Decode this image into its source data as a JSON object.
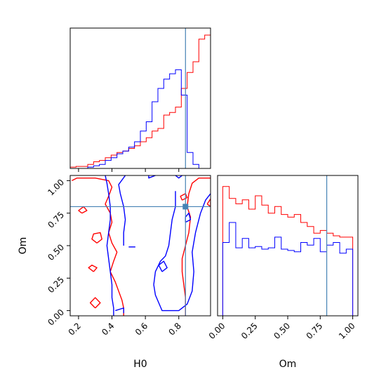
{
  "chart_data": {
    "type": "corner",
    "parameters": [
      "H0",
      "Om"
    ],
    "truth": {
      "H0": 0.84,
      "Om": 0.8
    },
    "colors": {
      "series_a": "#ff0000",
      "series_b": "#0000ff",
      "truth": "#4682b4"
    },
    "panels": [
      {
        "id": "hist_H0",
        "type": "histogram",
        "xlim": [
          0.15,
          0.99
        ],
        "bin_edges": [
          0.15,
          0.185,
          0.22,
          0.255,
          0.29,
          0.325,
          0.36,
          0.395,
          0.43,
          0.465,
          0.5,
          0.535,
          0.57,
          0.605,
          0.64,
          0.675,
          0.71,
          0.745,
          0.78,
          0.815,
          0.85,
          0.885,
          0.92,
          0.955,
          0.99
        ],
        "series": [
          {
            "color_key": "series_a",
            "counts": [
              0.01,
              0.015,
              0.015,
              0.03,
              0.05,
              0.06,
              0.08,
              0.1,
              0.12,
              0.13,
              0.15,
              0.17,
              0.2,
              0.23,
              0.28,
              0.3,
              0.4,
              0.42,
              0.46,
              0.6,
              0.72,
              0.8,
              0.97,
              1.0
            ]
          },
          {
            "color_key": "series_b",
            "counts": [
              0.0,
              0.0,
              0.0,
              0.01,
              0.02,
              0.03,
              0.06,
              0.08,
              0.11,
              0.13,
              0.16,
              0.2,
              0.28,
              0.35,
              0.5,
              0.6,
              0.67,
              0.71,
              0.74,
              0.55,
              0.12,
              0.03,
              0.0,
              0.0
            ]
          }
        ]
      },
      {
        "id": "hist_Om",
        "type": "histogram",
        "xlim": [
          -0.04,
          1.04
        ],
        "xticks": [
          "0.00",
          "0.25",
          "0.50",
          "0.75",
          "1.00"
        ],
        "xtick_values": [
          0.0,
          0.25,
          0.5,
          0.75,
          1.0
        ],
        "xlabel": "Om",
        "bin_edges": [
          0.0,
          0.05,
          0.1,
          0.15,
          0.2,
          0.25,
          0.3,
          0.35,
          0.4,
          0.45,
          0.5,
          0.55,
          0.6,
          0.65,
          0.7,
          0.75,
          0.8,
          0.85,
          0.9,
          0.95,
          1.0
        ],
        "series": [
          {
            "color_key": "series_a",
            "counts": [
              0.97,
              0.88,
              0.84,
              0.87,
              0.8,
              0.9,
              0.83,
              0.77,
              0.82,
              0.76,
              0.74,
              0.76,
              0.7,
              0.67,
              0.62,
              0.64,
              0.62,
              0.6,
              0.59,
              0.59
            ]
          },
          {
            "color_key": "series_b",
            "counts": [
              0.55,
              0.7,
              0.51,
              0.58,
              0.51,
              0.52,
              0.5,
              0.51,
              0.59,
              0.5,
              0.49,
              0.48,
              0.55,
              0.53,
              0.58,
              0.48,
              0.53,
              0.55,
              0.47,
              0.5
            ]
          }
        ]
      },
      {
        "id": "joint_H0_Om",
        "type": "contour",
        "xlim": [
          0.15,
          0.99
        ],
        "ylim": [
          -0.04,
          1.04
        ],
        "xticks": [
          "0.2",
          "0.4",
          "0.6",
          "0.8"
        ],
        "xtick_values": [
          0.2,
          0.4,
          0.6,
          0.8
        ],
        "yticks": [
          "0.00",
          "0.25",
          "0.50",
          "0.75",
          "1.00"
        ],
        "ytick_values": [
          0.0,
          0.25,
          0.5,
          0.75,
          1.0
        ],
        "xlabel": "H0",
        "ylabel": "Om",
        "series": [
          {
            "color_key": "series_a",
            "contours": [
              [
                [
                  0.16,
                  1.0
                ],
                [
                  0.19,
                  1.02
                ],
                [
                  0.3,
                  1.02
                ],
                [
                  0.38,
                  1.0
                ],
                [
                  0.4,
                  0.95
                ],
                [
                  0.38,
                  0.88
                ],
                [
                  0.36,
                  0.82
                ],
                [
                  0.39,
                  0.75
                ],
                [
                  0.4,
                  0.68
                ],
                [
                  0.38,
                  0.6
                ],
                [
                  0.4,
                  0.52
                ],
                [
                  0.43,
                  0.45
                ],
                [
                  0.41,
                  0.38
                ],
                [
                  0.39,
                  0.3
                ],
                [
                  0.42,
                  0.22
                ],
                [
                  0.44,
                  0.15
                ],
                [
                  0.46,
                  0.08
                ],
                [
                  0.47,
                  0.02
                ],
                [
                  0.47,
                  -0.04
                ]
              ],
              [
                [
                  0.3,
                  0.02
                ],
                [
                  0.33,
                  0.06
                ],
                [
                  0.3,
                  0.1
                ],
                [
                  0.27,
                  0.06
                ],
                [
                  0.3,
                  0.02
                ]
              ],
              [
                [
                  0.22,
                  0.75
                ],
                [
                  0.25,
                  0.77
                ],
                [
                  0.23,
                  0.8
                ],
                [
                  0.2,
                  0.77
                ],
                [
                  0.22,
                  0.75
                ]
              ],
              [
                [
                  0.31,
                  0.52
                ],
                [
                  0.34,
                  0.55
                ],
                [
                  0.33,
                  0.6
                ],
                [
                  0.29,
                  0.59
                ],
                [
                  0.28,
                  0.55
                ],
                [
                  0.31,
                  0.52
                ]
              ],
              [
                [
                  0.29,
                  0.3
                ],
                [
                  0.31,
                  0.33
                ],
                [
                  0.28,
                  0.35
                ],
                [
                  0.26,
                  0.33
                ],
                [
                  0.29,
                  0.3
                ]
              ],
              [
                [
                  0.99,
                  1.02
                ],
                [
                  0.92,
                  1.02
                ],
                [
                  0.88,
                  0.98
                ],
                [
                  0.86,
                  0.9
                ],
                [
                  0.85,
                  0.8
                ],
                [
                  0.87,
                  0.72
                ],
                [
                  0.86,
                  0.6
                ],
                [
                  0.84,
                  0.5
                ],
                [
                  0.82,
                  0.4
                ],
                [
                  0.82,
                  0.3
                ],
                [
                  0.83,
                  0.2
                ],
                [
                  0.84,
                  0.1
                ],
                [
                  0.84,
                  0.0
                ],
                [
                  0.84,
                  -0.04
                ]
              ],
              [
                [
                  0.82,
                  0.85
                ],
                [
                  0.85,
                  0.87
                ],
                [
                  0.84,
                  0.9
                ],
                [
                  0.81,
                  0.88
                ],
                [
                  0.82,
                  0.85
                ]
              ],
              [
                [
                  0.97,
                  0.82
                ],
                [
                  0.99,
                  0.8
                ],
                [
                  0.99,
                  0.86
                ],
                [
                  0.97,
                  0.82
                ]
              ]
            ]
          },
          {
            "color_key": "series_b",
            "contours": [
              [
                [
                  0.36,
                  1.04
                ],
                [
                  0.37,
                  0.98
                ],
                [
                  0.38,
                  0.9
                ],
                [
                  0.39,
                  0.8
                ],
                [
                  0.39,
                  0.7
                ],
                [
                  0.38,
                  0.6
                ],
                [
                  0.37,
                  0.5
                ],
                [
                  0.38,
                  0.4
                ],
                [
                  0.39,
                  0.3
                ],
                [
                  0.4,
                  0.2
                ],
                [
                  0.4,
                  0.1
                ],
                [
                  0.41,
                  0.02
                ],
                [
                  0.41,
                  -0.04
                ]
              ],
              [
                [
                  0.48,
                  1.04
                ],
                [
                  0.44,
                  0.97
                ],
                [
                  0.45,
                  0.9
                ],
                [
                  0.47,
                  0.8
                ],
                [
                  0.48,
                  0.7
                ],
                [
                  0.47,
                  0.6
                ],
                [
                  0.47,
                  0.5
                ]
              ],
              [
                [
                  0.42,
                  0.0
                ],
                [
                  0.47,
                  0.02
                ],
                [
                  0.47,
                  -0.02
                ]
              ],
              [
                [
                  0.62,
                  1.04
                ],
                [
                  0.62,
                  1.02
                ],
                [
                  0.66,
                  1.04
                ]
              ],
              [
                [
                  0.78,
                  1.04
                ],
                [
                  0.8,
                  1.02
                ],
                [
                  0.82,
                  1.04
                ]
              ],
              [
                [
                  0.78,
                  0.92
                ],
                [
                  0.78,
                  0.8
                ],
                [
                  0.76,
                  0.7
                ],
                [
                  0.75,
                  0.6
                ],
                [
                  0.74,
                  0.5
                ],
                [
                  0.72,
                  0.42
                ],
                [
                  0.69,
                  0.38
                ],
                [
                  0.66,
                  0.3
                ],
                [
                  0.65,
                  0.2
                ],
                [
                  0.66,
                  0.12
                ],
                [
                  0.7,
                  0.0
                ],
                [
                  0.8,
                  0.0
                ],
                [
                  0.85,
                  0.05
                ],
                [
                  0.88,
                  0.15
                ],
                [
                  0.89,
                  0.3
                ],
                [
                  0.88,
                  0.45
                ],
                [
                  0.9,
                  0.6
                ],
                [
                  0.93,
                  0.75
                ],
                [
                  0.96,
                  0.85
                ],
                [
                  0.99,
                  0.9
                ]
              ],
              [
                [
                  0.7,
                  0.3
                ],
                [
                  0.73,
                  0.33
                ],
                [
                  0.71,
                  0.38
                ],
                [
                  0.68,
                  0.35
                ],
                [
                  0.7,
                  0.3
                ]
              ],
              [
                [
                  0.5,
                  0.49
                ],
                [
                  0.54,
                  0.49
                ]
              ],
              [
                [
                  0.84,
                  0.68
                ],
                [
                  0.87,
                  0.7
                ],
                [
                  0.86,
                  0.75
                ],
                [
                  0.84,
                  0.72
                ],
                [
                  0.84,
                  0.68
                ]
              ]
            ]
          }
        ]
      }
    ]
  }
}
